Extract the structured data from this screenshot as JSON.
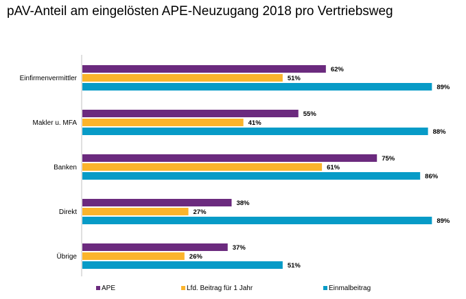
{
  "chart_data": {
    "type": "bar",
    "orientation": "horizontal",
    "title": "pAV-Anteil am eingelösten APE-Neuzugang 2018 pro Vertriebsweg",
    "categories": [
      "Einfirmenvermittler",
      "Makler u. MFA",
      "Banken",
      "Direkt",
      "Übrige"
    ],
    "series": [
      {
        "name": "APE",
        "color": "#6b2a7e",
        "values": [
          62,
          55,
          75,
          38,
          37
        ],
        "labels": [
          "62%",
          "55%",
          "75%",
          "38%",
          "37%"
        ]
      },
      {
        "name": "Lfd. Beitrag für 1 Jahr",
        "color": "#fbb42c",
        "values": [
          51,
          41,
          61,
          27,
          26
        ],
        "labels": [
          "51%",
          "41%",
          "61%",
          "27%",
          "26%"
        ]
      },
      {
        "name": "Einmalbeitrag",
        "color": "#079bc7",
        "values": [
          89,
          88,
          86,
          89,
          51
        ],
        "labels": [
          "89%",
          "88%",
          "86%",
          "89%",
          "51%"
        ]
      }
    ],
    "xlim": [
      0,
      100
    ],
    "legend_position": "bottom",
    "grid": false
  }
}
